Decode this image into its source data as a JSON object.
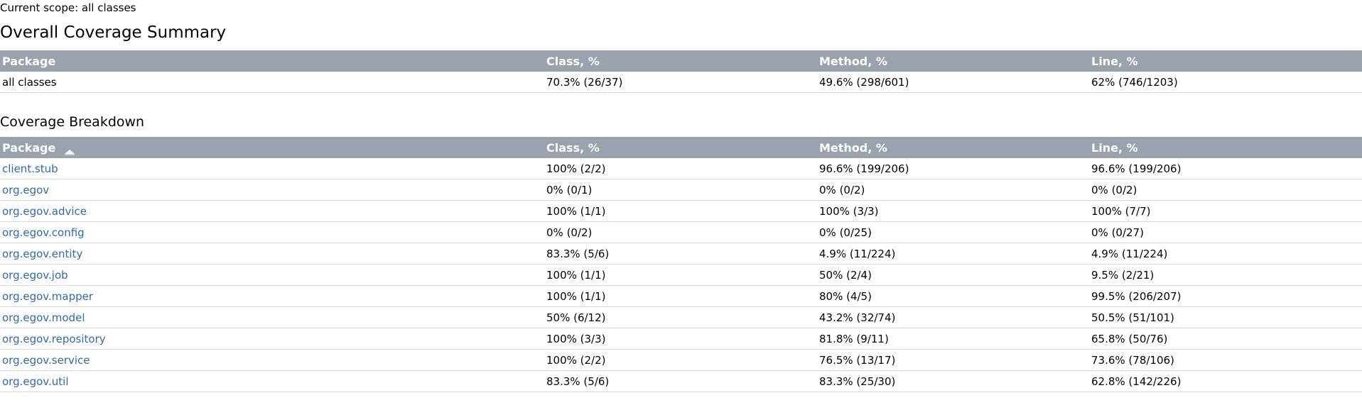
{
  "scope": "Current scope: all classes",
  "summary": {
    "title": "Overall Coverage Summary",
    "headers": {
      "package": "Package",
      "class": "Class, %",
      "method": "Method, %",
      "line": "Line, %"
    },
    "row": {
      "package": "all classes",
      "class": "70.3% (26/37)",
      "method": "49.6% (298/601)",
      "line": "62% (746/1203)"
    }
  },
  "breakdown": {
    "title": "Coverage Breakdown",
    "headers": {
      "package": "Package",
      "class": "Class, %",
      "method": "Method, %",
      "line": "Line, %"
    },
    "sort_icon": "sort-ascending-icon",
    "rows": [
      {
        "package": "client.stub",
        "class": "100% (2/2)",
        "method": "96.6% (199/206)",
        "line": "96.6% (199/206)"
      },
      {
        "package": "org.egov",
        "class": "0% (0/1)",
        "method": "0% (0/2)",
        "line": "0% (0/2)"
      },
      {
        "package": "org.egov.advice",
        "class": "100% (1/1)",
        "method": "100% (3/3)",
        "line": "100% (7/7)"
      },
      {
        "package": "org.egov.config",
        "class": "0% (0/2)",
        "method": "0% (0/25)",
        "line": "0% (0/27)"
      },
      {
        "package": "org.egov.entity",
        "class": "83.3% (5/6)",
        "method": "4.9% (11/224)",
        "line": "4.9% (11/224)"
      },
      {
        "package": "org.egov.job",
        "class": "100% (1/1)",
        "method": "50% (2/4)",
        "line": "9.5% (2/21)"
      },
      {
        "package": "org.egov.mapper",
        "class": "100% (1/1)",
        "method": "80% (4/5)",
        "line": "99.5% (206/207)"
      },
      {
        "package": "org.egov.model",
        "class": "50% (6/12)",
        "method": "43.2% (32/74)",
        "line": "50.5% (51/101)"
      },
      {
        "package": "org.egov.repository",
        "class": "100% (3/3)",
        "method": "81.8% (9/11)",
        "line": "65.8% (50/76)"
      },
      {
        "package": "org.egov.service",
        "class": "100% (2/2)",
        "method": "76.5% (13/17)",
        "line": "73.6% (78/106)"
      },
      {
        "package": "org.egov.util",
        "class": "83.3% (5/6)",
        "method": "83.3% (25/30)",
        "line": "62.8% (142/226)"
      }
    ]
  },
  "colors": {
    "header_bg": "#9aa3ad",
    "header_text": "#ffffff",
    "link": "#2e6bb0",
    "row_border": "#dcdcdc"
  }
}
